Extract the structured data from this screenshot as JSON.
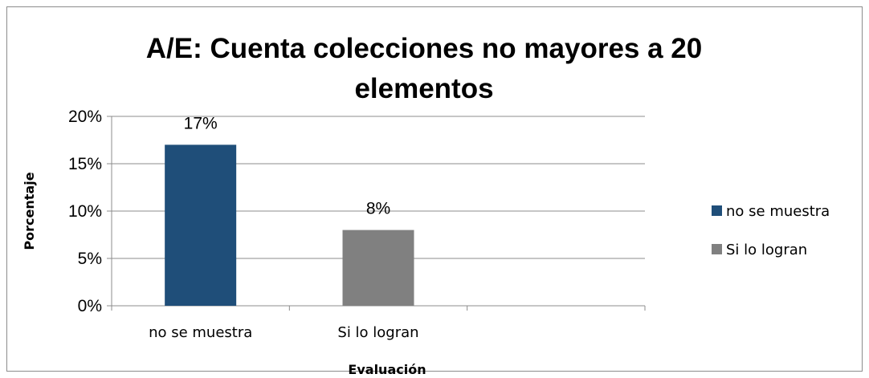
{
  "chart_data": {
    "type": "bar",
    "title_lines": [
      "A/E: Cuenta colecciones no mayores a 20",
      "elementos"
    ],
    "categories": [
      "no se muestra",
      "Si lo logran"
    ],
    "series": [
      {
        "name": "no se muestra",
        "values": [
          17,
          null
        ],
        "color": "#1f4e79"
      },
      {
        "name": "Si lo logran",
        "values": [
          null,
          8
        ],
        "color": "#808080"
      }
    ],
    "data_labels": [
      "17%",
      "8%"
    ],
    "ylim": [
      0,
      20
    ],
    "yticks": [
      0,
      5,
      10,
      15,
      20
    ],
    "ytick_labels": [
      "0%",
      "5%",
      "10%",
      "15%",
      "20%"
    ],
    "xlabel": "Evaluación",
    "ylabel": "Porcentaje",
    "grid": true,
    "legend_position": "right"
  }
}
